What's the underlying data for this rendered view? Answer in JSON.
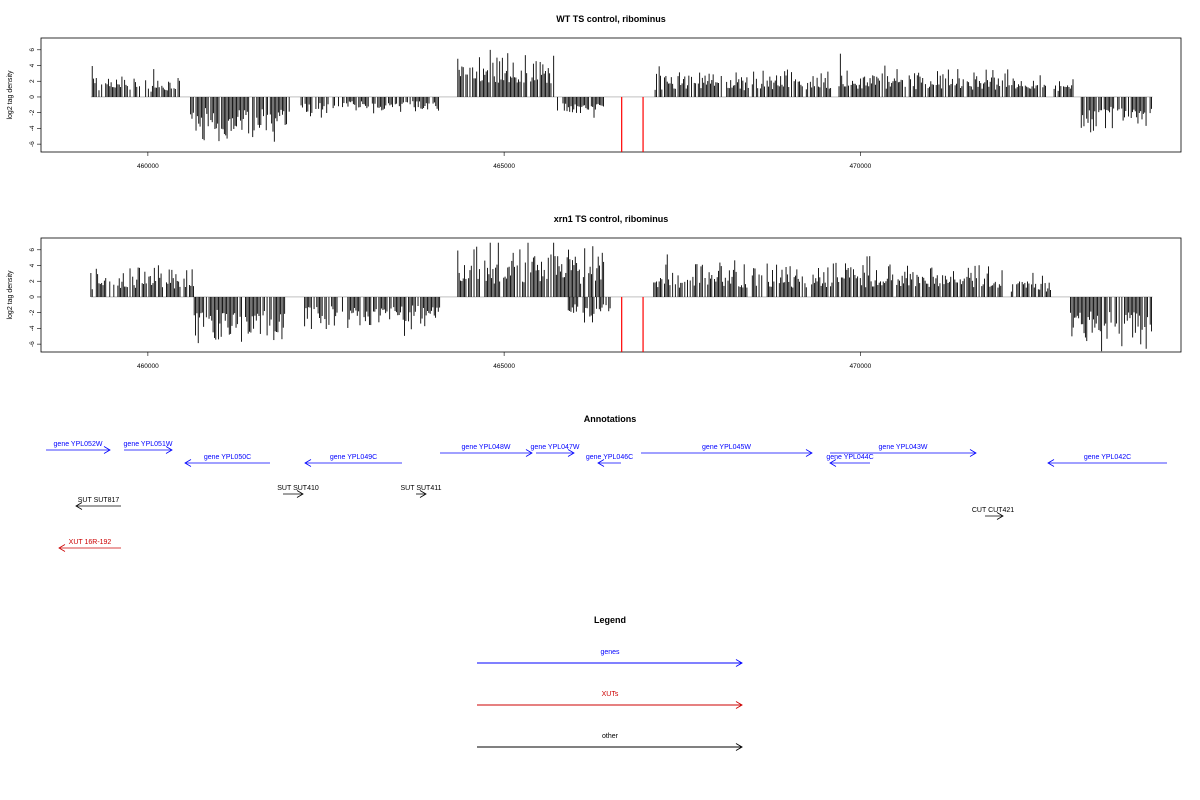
{
  "chart_data": [
    {
      "type": "bar",
      "title": "WT TS control, ribominus",
      "ylabel": "log2 tag density",
      "xlim": [
        458500,
        474500
      ],
      "ylim": [
        -7,
        7.5
      ],
      "xticks": [
        460000,
        465000,
        470000
      ],
      "xtick_labels": [
        "460000",
        "465000",
        "470000"
      ],
      "yticks": [
        -6,
        -4,
        -2,
        0,
        2,
        4,
        6
      ],
      "ytick_labels": [
        "-6",
        "-4",
        "-2",
        "0",
        "2",
        "4",
        "6"
      ],
      "baseline": 0,
      "series": [
        {
          "values_profile": [
            {
              "from": 459200,
              "to": 459900,
              "sign": 1,
              "amp": 2.2
            },
            {
              "from": 459950,
              "to": 460450,
              "sign": 1,
              "amp": 1.8
            },
            {
              "from": 460600,
              "to": 462000,
              "sign": -1,
              "amp": 4.0
            },
            {
              "from": 462150,
              "to": 462550,
              "sign": -1,
              "amp": 2.0
            },
            {
              "from": 462600,
              "to": 463100,
              "sign": -1,
              "amp": 1.2
            },
            {
              "from": 463150,
              "to": 464100,
              "sign": -1,
              "amp": 1.5
            },
            {
              "from": 464350,
              "to": 465700,
              "sign": 1,
              "amp": 4.5
            },
            {
              "from": 465750,
              "to": 466400,
              "sign": -1,
              "amp": 1.8
            },
            {
              "from": 467100,
              "to": 469600,
              "sign": 1,
              "amp": 2.4
            },
            {
              "from": 469700,
              "to": 472600,
              "sign": 1,
              "amp": 2.5
            },
            {
              "from": 472700,
              "to": 473000,
              "sign": 1,
              "amp": 1.6
            },
            {
              "from": 473100,
              "to": 474100,
              "sign": -1,
              "amp": 3.2
            }
          ],
          "color": "#000000"
        },
        {
          "name": "highlight",
          "x": [
            466650,
            466950
          ],
          "values": [
            -7,
            -7
          ],
          "color": "#ff0000"
        }
      ]
    },
    {
      "type": "bar",
      "title": "xrn1 TS control, ribominus",
      "ylabel": "log2 tag density",
      "xlim": [
        458500,
        474500
      ],
      "ylim": [
        -7,
        7.5
      ],
      "xticks": [
        460000,
        465000,
        470000
      ],
      "xtick_labels": [
        "460000",
        "465000",
        "470000"
      ],
      "yticks": [
        -6,
        -4,
        -2,
        0,
        2,
        4,
        6
      ],
      "ytick_labels": [
        "-6",
        "-4",
        "-2",
        "0",
        "2",
        "4",
        "6"
      ],
      "baseline": 0,
      "series": [
        {
          "values_profile": [
            {
              "from": 459200,
              "to": 460650,
              "sign": 1,
              "amp": 2.8
            },
            {
              "from": 460650,
              "to": 461950,
              "sign": -1,
              "amp": 4.2
            },
            {
              "from": 462200,
              "to": 464100,
              "sign": -1,
              "amp": 3.0
            },
            {
              "from": 464350,
              "to": 466400,
              "sign": 1,
              "amp": 4.8
            },
            {
              "from": 465900,
              "to": 466500,
              "sign": -1,
              "amp": 2.6
            },
            {
              "from": 467100,
              "to": 472000,
              "sign": 1,
              "amp": 3.0
            },
            {
              "from": 472100,
              "to": 472700,
              "sign": 1,
              "amp": 1.6
            },
            {
              "from": 472950,
              "to": 474100,
              "sign": -1,
              "amp": 4.5
            }
          ],
          "color": "#000000"
        },
        {
          "name": "highlight",
          "x": [
            466650,
            466950
          ],
          "values": [
            -7,
            -7
          ],
          "color": "#ff0000"
        }
      ]
    }
  ],
  "annotations": {
    "title": "Annotations",
    "items": [
      {
        "label": "gene YPL052W",
        "color": "#0000ff",
        "dir": "right"
      },
      {
        "label": "gene YPL051W",
        "color": "#0000ff",
        "dir": "right"
      },
      {
        "label": "gene YPL050C",
        "color": "#0000ff",
        "dir": "left"
      },
      {
        "label": "gene YPL049C",
        "color": "#0000ff",
        "dir": "left"
      },
      {
        "label": "gene YPL048W",
        "color": "#0000ff",
        "dir": "right"
      },
      {
        "label": "gene YPL047W",
        "color": "#0000ff",
        "dir": "right"
      },
      {
        "label": "gene YPL046C",
        "color": "#0000ff",
        "dir": "left"
      },
      {
        "label": "gene YPL045W",
        "color": "#0000ff",
        "dir": "right"
      },
      {
        "label": "gene YPL044C",
        "color": "#0000ff",
        "dir": "left"
      },
      {
        "label": "gene YPL043W",
        "color": "#0000ff",
        "dir": "right"
      },
      {
        "label": "gene YPL042C",
        "color": "#0000ff",
        "dir": "left"
      },
      {
        "label": "SUT SUT817",
        "color": "#000000",
        "dir": "left"
      },
      {
        "label": "SUT SUT410",
        "color": "#000000",
        "dir": "right"
      },
      {
        "label": "SUT SUT411",
        "color": "#000000",
        "dir": "right"
      },
      {
        "label": "CUT CUT421",
        "color": "#000000",
        "dir": "right"
      },
      {
        "label": "XUT 16R-192",
        "color": "#cc0000",
        "dir": "left"
      }
    ]
  },
  "legend": {
    "title": "Legend",
    "items": [
      {
        "label": "genes",
        "color": "#0000ff"
      },
      {
        "label": "XUTs",
        "color": "#cc0000"
      },
      {
        "label": "other",
        "color": "#000000"
      }
    ]
  }
}
